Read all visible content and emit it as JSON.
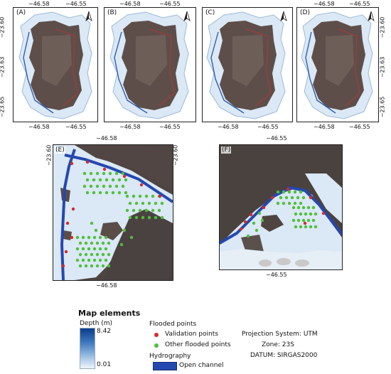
{
  "panels_top": [
    {
      "id": "A",
      "label": "(A)"
    },
    {
      "id": "B",
      "label": "(B)"
    },
    {
      "id": "C",
      "label": "(C)"
    },
    {
      "id": "D",
      "label": "(D)"
    }
  ],
  "top_ticks": {
    "x_left": "−46.58",
    "x_right": "−46.55",
    "y_top": "−23.60",
    "y_mid": "−23.63",
    "y_bottom": "−23.65"
  },
  "panel_E": {
    "label": "(E)",
    "x_tick": "−46.58",
    "y_tick": "−23.60"
  },
  "panel_F": {
    "label": "(F)",
    "x_tick": "−46.55"
  },
  "legend": {
    "title": "Map elements",
    "depth_title": "Depth (m)",
    "depth_max": "8.42",
    "depth_min": "0.01",
    "flooded_title": "Flooded points",
    "validation_label": "Validation points",
    "other_label": "Other flooded points",
    "hydro_title": "Hydrography",
    "channel_label": "Open channel",
    "projection": "Projection System: UTM",
    "zone": "Zone: 23S",
    "datum": "DATUM: SIRGAS2000"
  },
  "colors": {
    "validation_point": "#d42a2a",
    "other_point": "#4fbf3a",
    "open_channel": "#2548b0",
    "depth_max": "#0d3d8c",
    "depth_min": "#eef4fb",
    "urban": "#5e4e4a",
    "flood_area": "#dbe8f5"
  }
}
